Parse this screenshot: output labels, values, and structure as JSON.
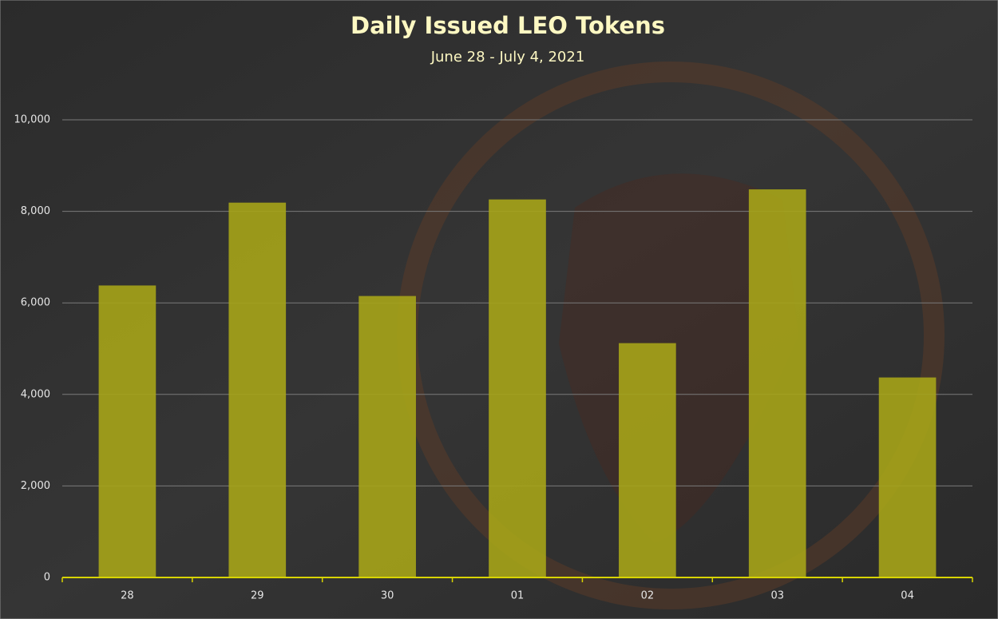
{
  "chart_data": {
    "type": "bar",
    "title": "Daily Issued LEO Tokens",
    "subtitle": "June 28 - July 4, 2021",
    "categories": [
      "28",
      "29",
      "30",
      "01",
      "02",
      "03",
      "04"
    ],
    "values": [
      6380,
      8190,
      6150,
      8260,
      5120,
      8480,
      4370
    ],
    "color": "#a6a418",
    "ylim": [
      0,
      10000
    ],
    "yticks": [
      0,
      {
        "value": 2000,
        "label": "2,000"
      },
      {
        "value": 4000,
        "label": "4,000"
      },
      {
        "value": 6000,
        "label": "6,000"
      },
      {
        "value": 8000,
        "label": "8,000"
      },
      {
        "value": 10000,
        "label": "10,000"
      }
    ],
    "grid": true
  }
}
